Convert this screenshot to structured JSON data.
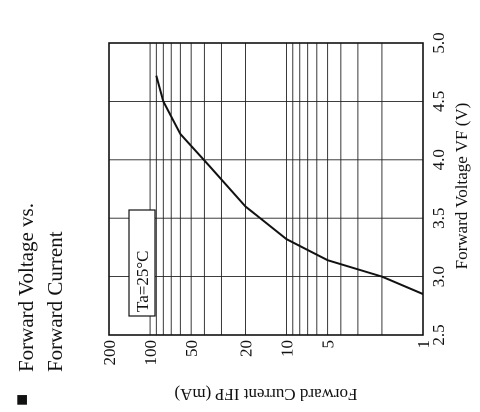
{
  "chart_data": {
    "type": "line",
    "title_line1": "Forward Voltage vs.",
    "title_line2": "Forward Current",
    "title_bullet": "■",
    "xlabel": "Forward Voltage  VF (V)",
    "ylabel": "Forward Current  IFP (mA)",
    "annotation": "Ta=25°C",
    "x_scale": "linear",
    "y_scale": "log",
    "xlim": [
      2.5,
      5.0
    ],
    "ylim": [
      1,
      200
    ],
    "x_ticks": [
      2.5,
      3.0,
      3.5,
      4.0,
      4.5,
      5.0
    ],
    "x_tick_labels": [
      "2.5",
      "3.0",
      "3.5",
      "4.0",
      "4.5",
      "5.0"
    ],
    "y_ticks": [
      1,
      5,
      10,
      20,
      50,
      100,
      200
    ],
    "y_tick_labels": [
      "1",
      "5",
      "10",
      "20",
      "50",
      "100",
      "200"
    ],
    "grid": true,
    "series": [
      {
        "x": [
          2.85,
          3.0,
          3.14,
          3.32,
          3.6,
          3.95,
          4.22,
          4.5,
          4.72
        ],
        "y": [
          1,
          2,
          5,
          10,
          20,
          37,
          60,
          80,
          90
        ]
      }
    ]
  }
}
